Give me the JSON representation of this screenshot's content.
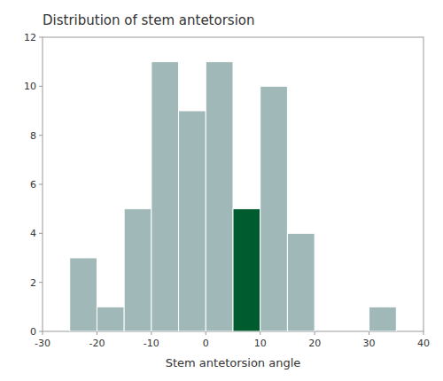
{
  "chart_data": {
    "type": "histogram",
    "title": "Distribution of stem antetorsion",
    "xlabel": "Stem antetorsion angle",
    "x": [
      -25,
      -20,
      -15,
      -10,
      -5,
      0,
      5,
      10,
      15,
      20,
      30
    ],
    "bin_width": 5,
    "values": [
      3,
      1,
      5,
      11,
      9,
      11,
      5,
      10,
      4,
      0,
      1
    ],
    "colors": [
      "#a0b8b8",
      "#a0b8b8",
      "#a0b8b8",
      "#a0b8b8",
      "#a0b8b8",
      "#a0b8b8",
      "#005c2e",
      "#a0b8b8",
      "#a0b8b8",
      "#a0b8b8",
      "#a0b8b8"
    ],
    "xlim": [
      -30,
      40
    ],
    "ylim": [
      0,
      12
    ],
    "xticks": [
      -30,
      -20,
      -10,
      0,
      10,
      20,
      30,
      40
    ],
    "yticks": [
      0,
      2,
      4,
      6,
      8,
      10,
      12
    ],
    "grid": false
  }
}
